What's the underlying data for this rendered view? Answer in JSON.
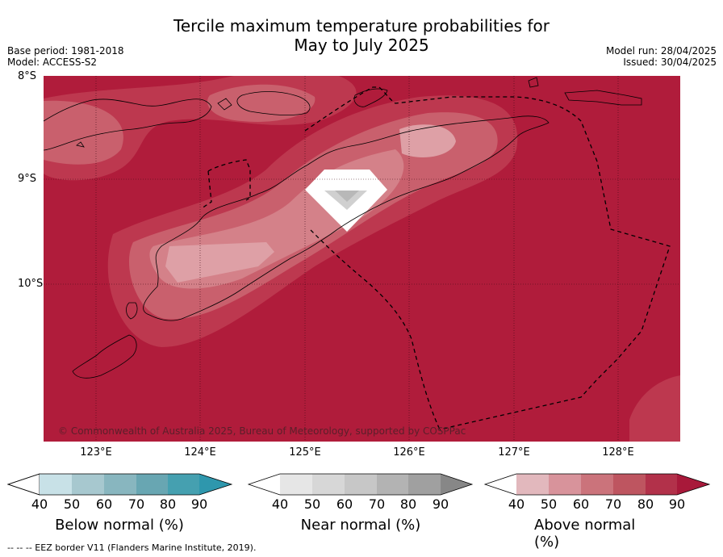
{
  "title": {
    "line1": "Tercile maximum temperature probabilities for",
    "line2": "May to July 2025"
  },
  "meta_left": {
    "base_period": "Base period: 1981-2018",
    "model": "Model: ACCESS-S2"
  },
  "meta_right": {
    "model_run": "Model run: 28/04/2025",
    "issued": "Issued: 30/04/2025"
  },
  "map": {
    "lat_labels": [
      "8°S",
      "9°S",
      "10°S"
    ],
    "lon_labels": [
      "123°E",
      "124°E",
      "125°E",
      "126°E",
      "127°E",
      "128°E"
    ],
    "copyright": "© Commonwealth of Australia 2025, Bureau of Meteorology, supported by COSPPac",
    "colors": {
      "above_90": "#b01c3b",
      "above_80": "#bd384f",
      "above_70": "#c9606d",
      "above_60": "#d48189",
      "above_50": "#dea0a6",
      "above_40": "#e8bec2",
      "near_50": "#d0d0d0",
      "white": "#ffffff"
    }
  },
  "legend": {
    "ticks": [
      "40",
      "50",
      "60",
      "70",
      "80",
      "90"
    ],
    "below": {
      "label": "Below normal (%)",
      "colors": [
        "#c8e1e7",
        "#a7c8cf",
        "#88b6bf",
        "#68a6b2",
        "#45a0b0",
        "#2e97ad"
      ]
    },
    "near": {
      "label": "Near normal (%)",
      "colors": [
        "#e6e6e6",
        "#d7d7d7",
        "#c7c7c7",
        "#b3b3b3",
        "#a0a0a0",
        "#878787"
      ]
    },
    "above": {
      "label": "Above normal (%)",
      "colors": [
        "#e2b8bd",
        "#d8939b",
        "#cb737b",
        "#be5560",
        "#b2314a",
        "#a8193a"
      ]
    }
  },
  "footnote": "--  --  -- EEZ border V11 (Flanders Marine Institute, 2019)."
}
